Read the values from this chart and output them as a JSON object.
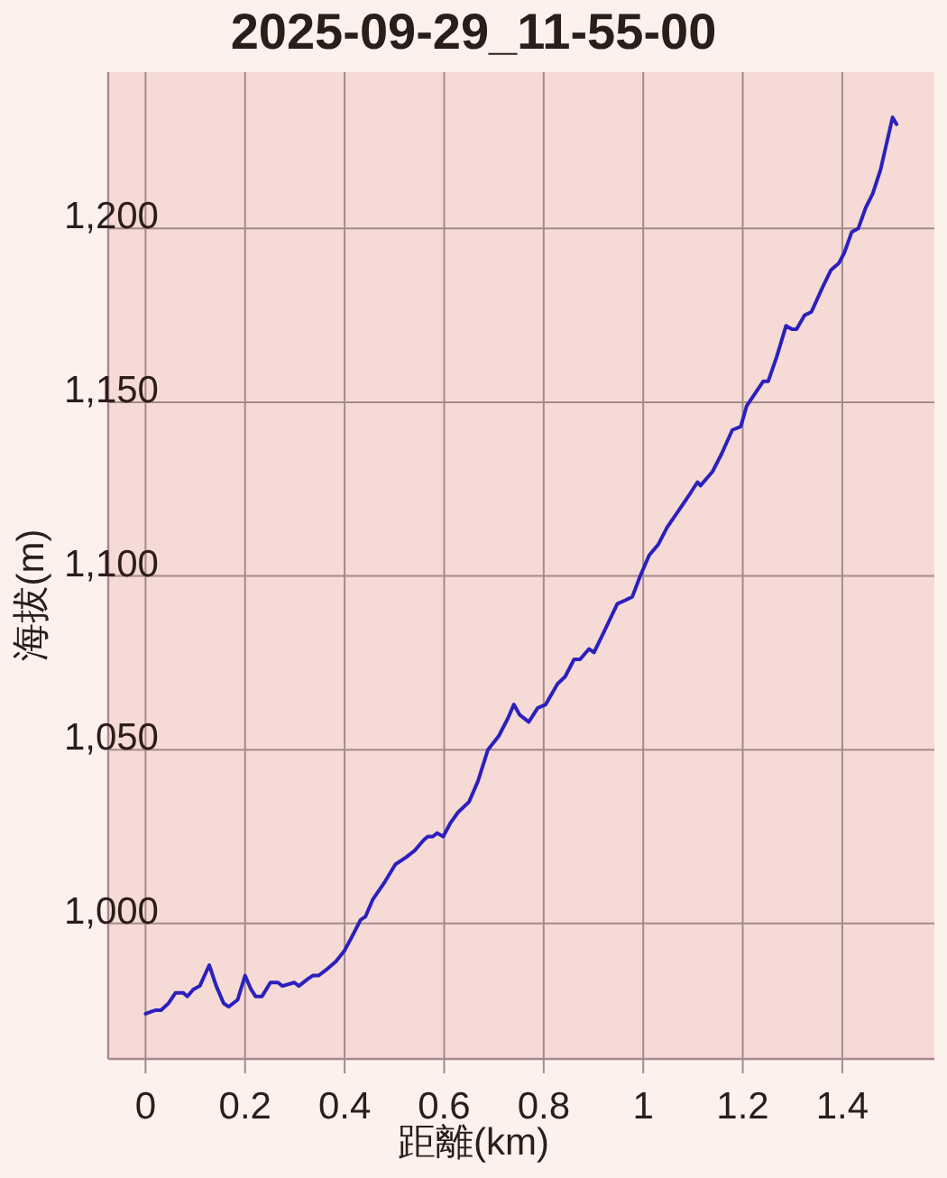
{
  "chart_data": {
    "type": "line",
    "title": "2025-09-29_11-55-00",
    "xlabel": "距離(km)",
    "ylabel": "海拔(m)",
    "x": [
      0,
      0.019,
      0.031,
      0.046,
      0.06,
      0.076,
      0.084,
      0.096,
      0.109,
      0.128,
      0.142,
      0.157,
      0.167,
      0.185,
      0.2,
      0.212,
      0.221,
      0.234,
      0.251,
      0.266,
      0.275,
      0.299,
      0.308,
      0.326,
      0.336,
      0.348,
      0.366,
      0.382,
      0.399,
      0.414,
      0.432,
      0.442,
      0.457,
      0.481,
      0.502,
      0.523,
      0.541,
      0.559,
      0.567,
      0.577,
      0.586,
      0.598,
      0.613,
      0.628,
      0.65,
      0.668,
      0.688,
      0.71,
      0.728,
      0.74,
      0.752,
      0.77,
      0.788,
      0.804,
      0.828,
      0.843,
      0.861,
      0.873,
      0.891,
      0.901,
      0.918,
      0.948,
      0.964,
      0.978,
      0.994,
      1.012,
      1.03,
      1.048,
      1.072,
      1.091,
      1.109,
      1.115,
      1.139,
      1.157,
      1.179,
      1.196,
      1.208,
      1.227,
      1.241,
      1.251,
      1.268,
      1.287,
      1.299,
      1.308,
      1.324,
      1.338,
      1.36,
      1.377,
      1.393,
      1.404,
      1.419,
      1.432,
      1.447,
      1.461,
      1.477,
      1.501,
      1.509
    ],
    "series": [
      {
        "color": "#2c20bd",
        "values": [
          974,
          975,
          975,
          977,
          980,
          980,
          979,
          981,
          982,
          988,
          982,
          977,
          976,
          978,
          985,
          981,
          979,
          979,
          983,
          983,
          982,
          983,
          982,
          984,
          985,
          985,
          987,
          989,
          992,
          996,
          1001,
          1002,
          1007,
          1012,
          1017,
          1019,
          1021,
          1024,
          1025,
          1025,
          1026,
          1025,
          1029,
          1032,
          1035,
          1041,
          1050,
          1054,
          1059,
          1063,
          1060,
          1058,
          1062,
          1063,
          1069,
          1071,
          1076,
          1076,
          1079,
          1078,
          1083,
          1092,
          1093,
          1094,
          1100,
          1106,
          1109,
          1114,
          1119,
          1123,
          1127,
          1126,
          1130,
          1135,
          1142,
          1143,
          1149,
          1153,
          1156,
          1156,
          1163,
          1172,
          1171,
          1171,
          1175,
          1176,
          1183,
          1188,
          1190,
          1193,
          1199,
          1200,
          1206,
          1210,
          1217,
          1232,
          1230
        ]
      }
    ],
    "xlim": [
      -0.075,
      1.585
    ],
    "ylim": [
      961,
      1245
    ],
    "xticks": [
      0,
      0.2,
      0.4,
      0.6,
      0.8,
      1,
      1.2,
      1.4
    ],
    "yticks": [
      {
        "value": 1000,
        "label": "1,000"
      },
      {
        "value": 1050,
        "label": "1,050"
      },
      {
        "value": 1100,
        "label": "1,100"
      },
      {
        "value": 1150,
        "label": "1,150"
      },
      {
        "value": 1200,
        "label": "1,200"
      }
    ],
    "grid": true
  }
}
